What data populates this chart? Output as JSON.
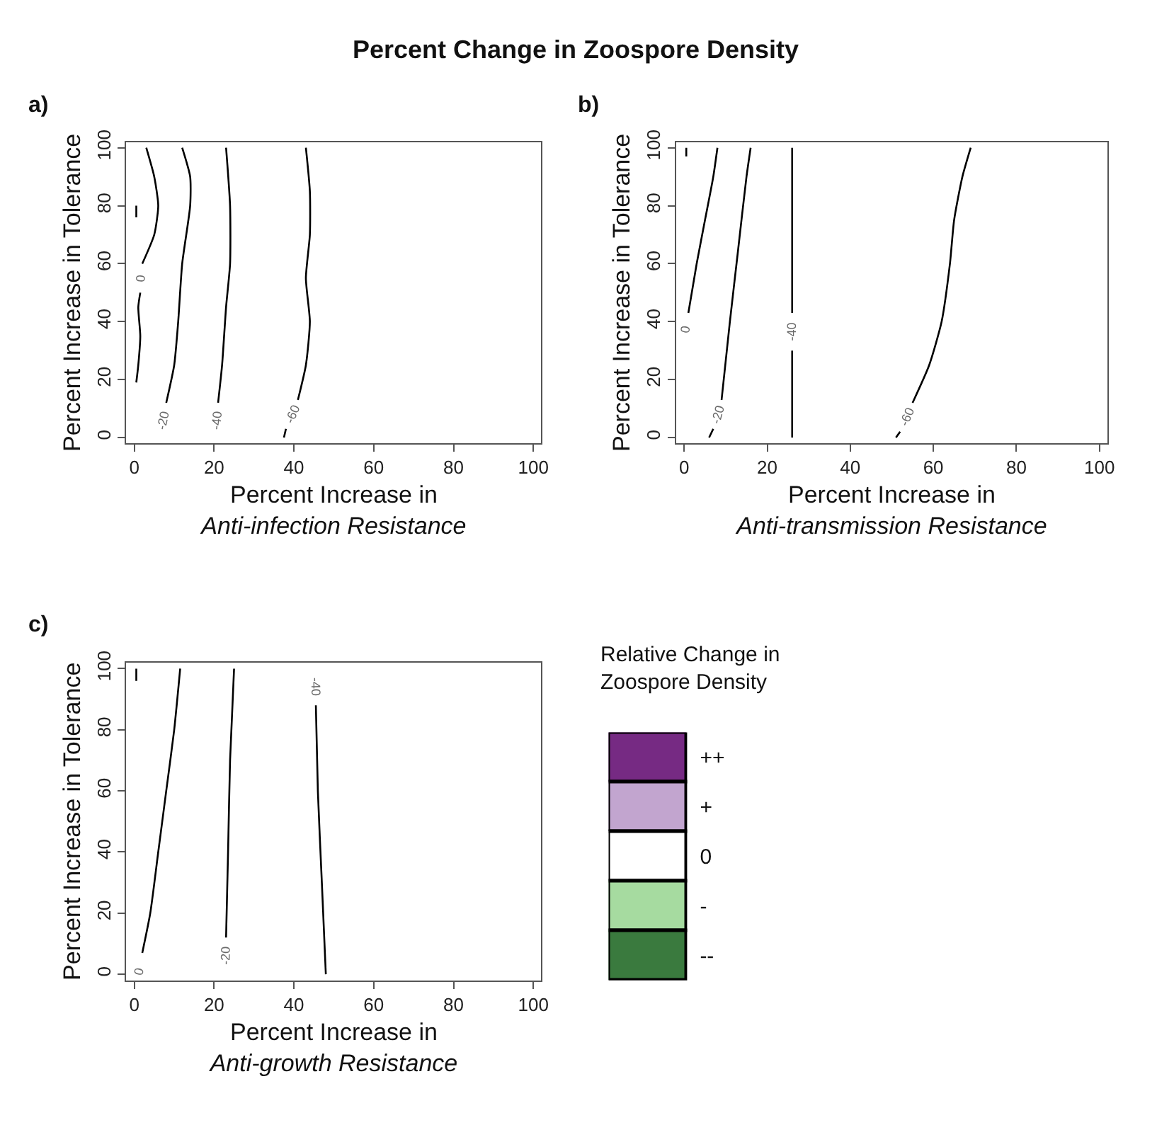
{
  "chart_data": [
    {
      "type": "line",
      "title": "Percent Change in Zoospore Density",
      "annotations": [
        "a)"
      ],
      "xlabel": "Percent Increase in\nAnti-infection Resistance",
      "ylabel": "Percent Increase in Tolerance",
      "xlim": [
        -2,
        102
      ],
      "ylim": [
        -2,
        102
      ],
      "xticks": [
        0,
        20,
        40,
        60,
        80,
        100
      ],
      "yticks": [
        0,
        20,
        40,
        60,
        80,
        100
      ],
      "series": [
        {
          "name": "0",
          "color": "#000000",
          "x": [
            0.5,
            1,
            1.5,
            1,
            1.5,
            null,
            2,
            5,
            6,
            5,
            3
          ],
          "values": [
            19,
            25,
            35,
            45,
            50,
            null,
            60,
            70,
            80,
            90,
            100
          ]
        },
        {
          "name": "-20",
          "color": "#000000",
          "x": [
            8,
            10,
            11,
            12,
            14,
            14,
            12
          ],
          "values": [
            12,
            25,
            40,
            60,
            80,
            90,
            100
          ]
        },
        {
          "name": "-40",
          "color": "#000000",
          "x": [
            21,
            22,
            23,
            24,
            24,
            23
          ],
          "values": [
            12,
            25,
            45,
            60,
            80,
            100
          ]
        },
        {
          "name": "-60",
          "color": "#000000",
          "x": [
            37.5,
            38,
            null,
            41,
            43,
            44,
            43,
            44,
            44,
            43
          ],
          "values": [
            0,
            3,
            null,
            13,
            25,
            40,
            55,
            70,
            85,
            100
          ]
        },
        {
          "color": "#000000",
          "x": [
            0.5,
            0.5
          ],
          "values": [
            76,
            80
          ]
        }
      ]
    },
    {
      "type": "line",
      "annotations": [
        "b)"
      ],
      "xlabel": "Percent Increase in\nAnti-transmission Resistance",
      "ylabel": "Percent Increase in Tolerance",
      "xlim": [
        -2,
        102
      ],
      "ylim": [
        -2,
        102
      ],
      "xticks": [
        0,
        20,
        40,
        60,
        80,
        100
      ],
      "yticks": [
        0,
        20,
        40,
        60,
        80,
        100
      ],
      "series": [
        {
          "name": "0",
          "color": "#000000",
          "x": [
            1,
            3,
            5,
            7,
            8
          ],
          "values": [
            43,
            60,
            75,
            90,
            100
          ]
        },
        {
          "name": "-20",
          "color": "#000000",
          "x": [
            6,
            7,
            null,
            9,
            11,
            13,
            15,
            16
          ],
          "values": [
            0,
            3,
            null,
            13,
            40,
            65,
            90,
            100
          ]
        },
        {
          "name": "-40",
          "color": "#000000",
          "x": [
            26,
            26,
            null,
            26,
            26,
            26
          ],
          "values": [
            0,
            30,
            null,
            43,
            70,
            100
          ]
        },
        {
          "name": "-60",
          "color": "#000000",
          "x": [
            51,
            52,
            null,
            55,
            59,
            62,
            64,
            65,
            67,
            69
          ],
          "values": [
            0,
            2,
            null,
            12,
            25,
            40,
            60,
            75,
            90,
            100
          ]
        },
        {
          "color": "#000000",
          "x": [
            0.5,
            0.5
          ],
          "values": [
            97,
            100
          ]
        }
      ]
    },
    {
      "type": "line",
      "annotations": [
        "c)"
      ],
      "xlabel": "Percent Increase in\nAnti-growth Resistance",
      "ylabel": "Percent Increase in Tolerance",
      "xlim": [
        -2,
        102
      ],
      "ylim": [
        -2,
        102
      ],
      "xticks": [
        0,
        20,
        40,
        60,
        80,
        100
      ],
      "yticks": [
        0,
        20,
        40,
        60,
        80,
        100
      ],
      "series": [
        {
          "name": "0",
          "color": "#000000",
          "x": [
            2,
            4,
            6,
            8,
            10,
            11.5
          ],
          "values": [
            7,
            20,
            40,
            60,
            80,
            100
          ]
        },
        {
          "name": "-20",
          "color": "#000000",
          "x": [
            23,
            23.5,
            24,
            25
          ],
          "values": [
            12,
            40,
            70,
            100
          ]
        },
        {
          "name": "-40",
          "color": "#000000",
          "x": [
            45.5,
            46,
            47,
            48
          ],
          "values": [
            88,
            60,
            30,
            0
          ]
        },
        {
          "color": "#000000",
          "x": [
            0.5,
            0.5
          ],
          "values": [
            96,
            100
          ]
        }
      ]
    },
    {
      "type": "other",
      "title": "Relative Change in\nZoospore Density",
      "categories": [
        "++",
        "+",
        "0",
        "-",
        "--"
      ],
      "colors": [
        "#762a83",
        "#c2a5cf",
        "#ffffff",
        "#a6dba0",
        "#3a7a3e"
      ]
    }
  ]
}
